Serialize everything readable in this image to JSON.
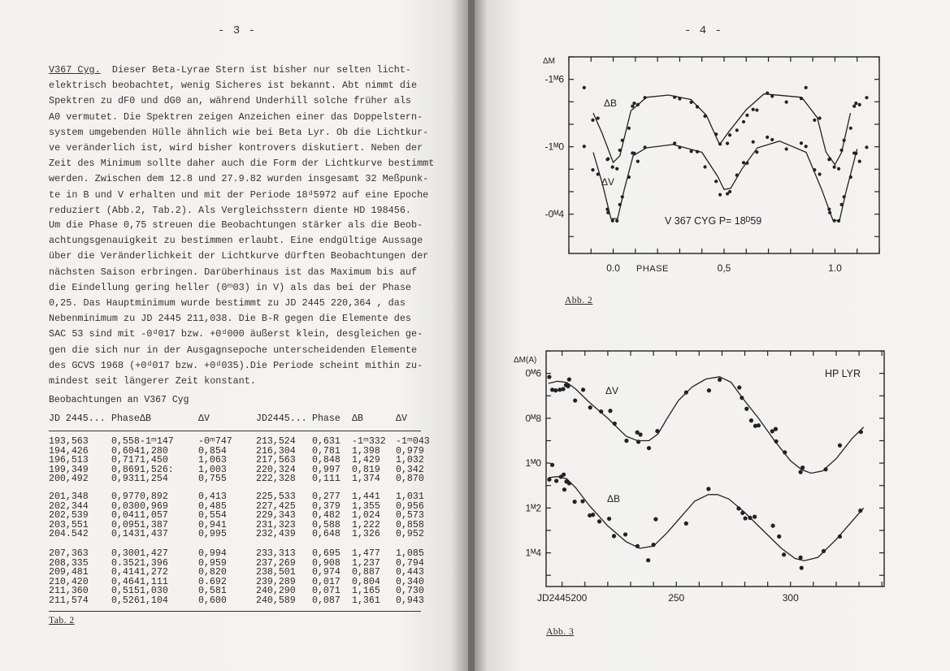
{
  "left_page": {
    "page_number": "- 3 -",
    "paragraph1_lead": "V367 Cyg.",
    "paragraph1": [
      "  Dieser Beta-Lyrae Stern ist bisher nur selten licht-",
      "elektrisch beobachtet, wenig Sicheres ist bekannt. Abt nimmt die",
      "Spektren zu dF0 und dG0 an, während Underhill solche früher als",
      "A0 vermutet. Die Spektren zeigen Anzeichen einer das Doppelstern-",
      "system umgebenden Hülle ähnlich wie bei Beta Lyr. Ob die Lichtkur-",
      "ve veränderlich ist, wird bisher kontrovers diskutiert. Neben der",
      "Zeit des Minimum sollte daher auch die Form der Lichtkurve bestimmt",
      "werden. Zwischen dem 12.8 und 27.9.82 wurden insgesamt 32 Meßpunk-",
      "te in B und V erhalten und mit der Periode 18ᵈ5972 auf eine Epoche",
      "reduziert (Abb.2, Tab.2). Als Vergleichsstern diente HD 198456."
    ],
    "paragraph2": [
      "Um die Phase 0,75 streuen die Beobachtungen stärker als die Beob-",
      "achtungsgenauigkeit zu bestimmen erlaubt. Eine endgültige Aussage",
      "über die Veränderlichkeit der Lichtkurve dürften Beobachtungen der",
      "nächsten Saison erbringen. Darüberhinaus ist das Maximum bis auf",
      "die Eindellung gering heller (0ᵐ03) in V) als das bei der Phase",
      "0,25. Das Hauptminimum wurde bestimmt zu JD 2445 220,364 , das",
      "Nebenminimum zu JD 2445 211,038. Die B-R gegen die Elemente des",
      "SAC 53 sind mit -0ᵈ017 bzw. +0ᵈ000 äußerst klein, desgleichen ge-",
      "gen die sich nur in der Ausgagnsepoche unterscheidenden Elemente",
      "des GCVS 1968 (+0ᵈ017 bzw. +0ᵈ035).Die Periode scheint mithin zu-",
      "mindest seit längerer Zeit konstant."
    ],
    "table_title": "Beobachtungen an V367 Cyg",
    "table_headers": [
      "JD 2445...",
      "Phase",
      "ΔB",
      "ΔV",
      "JD2445...",
      "Phase",
      "ΔB",
      "ΔV"
    ],
    "table_groups": [
      [
        [
          "193,563",
          "0,558",
          "-1ᵐ147",
          "-0ᵐ747",
          "213,524",
          "0,631",
          "-1ᵐ332",
          "-1ᵐ043"
        ],
        [
          "194,426",
          "0,604",
          "1,280",
          "0,854",
          "216,304",
          "0,781",
          "1,398",
          "0,979"
        ],
        [
          "196,513",
          "0,717",
          "1,450",
          "1,063",
          "217,563",
          "0,848",
          "1,429",
          "1,032"
        ],
        [
          "199,349",
          "0,869",
          "1,526:",
          "1,003",
          "220,324",
          "0,997",
          "0,819",
          "0,342"
        ],
        [
          "200,492",
          "0,931",
          "1,254",
          "0,755",
          "222,328",
          "0,111",
          "1,374",
          "0,870"
        ]
      ],
      [
        [
          "201,348",
          "0,977",
          "0,892",
          "0,413",
          "225,533",
          "0,277",
          "1,441",
          "1,031"
        ],
        [
          "202,344",
          "0,030",
          "0,969",
          "0,485",
          "227,425",
          "0,379",
          "1,355",
          "0,956"
        ],
        [
          "202,539",
          "0,041",
          "1,057",
          "0,554",
          "229,343",
          "0,482",
          "1,024",
          "0,573"
        ],
        [
          "203,551",
          "0,095",
          "1,387",
          "0,941",
          "231,323",
          "0,588",
          "1,222",
          "0,858"
        ],
        [
          "204.542",
          "0,143",
          "1,437",
          "0,995",
          "232,439",
          "0,648",
          "1,326",
          "0,952"
        ]
      ],
      [
        [
          "207,363",
          "0,300",
          "1,427",
          "0,994",
          "233,313",
          "0,695",
          "1,477",
          "1,085"
        ],
        [
          "208,335",
          "0.352",
          "1,396",
          "0,959",
          "237,269",
          "0,908",
          "1,237",
          "0,794"
        ],
        [
          "209,481",
          "0,414",
          "1,272",
          "0,820",
          "238,501",
          "0,974",
          "0,887",
          "0,443"
        ],
        [
          "210,420",
          "0,464",
          "1,111",
          "0.692",
          "239,289",
          "0,017",
          "0,804",
          "0,340"
        ],
        [
          "211,360",
          "0,515",
          "1,030",
          "0,581",
          "240,290",
          "0,071",
          "1,165",
          "0,730"
        ],
        [
          "211,574",
          "0,526",
          "1,104",
          "0,600",
          "240,589",
          "0,087",
          "1,361",
          "0,943"
        ]
      ]
    ],
    "table_caption": "Tab. 2"
  },
  "right_page": {
    "page_number": "- 4 -",
    "fig2_caption": "Abb. 2",
    "fig3_caption": "Abb. 3"
  },
  "chart_data": [
    {
      "type": "scatter",
      "title": "V 367 CYG  P= 18ᴰ59",
      "ylabel": "ΔM",
      "xlabel": "PHASE",
      "xlim": [
        -0.2,
        1.2
      ],
      "ylim": [
        -1.8,
        -0.05
      ],
      "y_inverted": true,
      "x_ticks": [
        {
          "v": 0.0,
          "label": "0.0"
        },
        {
          "v": 0.5,
          "label": "0,5"
        },
        {
          "v": 1.0,
          "label": "1.0"
        }
      ],
      "y_ticks": [
        {
          "v": -1.6,
          "label": "-1ᴹ6"
        },
        {
          "v": -1.0,
          "label": "-1ᴹ0"
        },
        {
          "v": -0.4,
          "label": "-0ᴹ4"
        }
      ],
      "grid": false,
      "series": [
        {
          "name": "ΔB",
          "phase": [
            0.558,
            0.604,
            0.717,
            0.869,
            0.931,
            0.977,
            0.03,
            0.041,
            0.095,
            0.143,
            0.3,
            0.352,
            0.414,
            0.464,
            0.515,
            0.526,
            0.631,
            0.781,
            0.848,
            0.997,
            0.111,
            0.277,
            0.379,
            0.482,
            0.588,
            0.648,
            0.695,
            0.908,
            0.974,
            0.017,
            0.071,
            0.087
          ],
          "values": [
            -1.147,
            -1.28,
            -1.45,
            -1.526,
            -1.254,
            -0.892,
            -0.969,
            -1.057,
            -1.387,
            -1.437,
            -1.427,
            -1.396,
            -1.272,
            -1.111,
            -1.03,
            -1.104,
            -1.332,
            -1.398,
            -1.429,
            -0.819,
            -1.374,
            -1.441,
            -1.355,
            -1.024,
            -1.222,
            -1.326,
            -1.477,
            -1.237,
            -0.887,
            -0.804,
            -1.165,
            -1.361
          ],
          "curve": [
            [
              -0.09,
              -1.3
            ],
            [
              -0.05,
              -1.12
            ],
            [
              0.0,
              -0.86
            ],
            [
              0.03,
              -0.92
            ],
            [
              0.08,
              -1.32
            ],
            [
              0.15,
              -1.44
            ],
            [
              0.25,
              -1.46
            ],
            [
              0.35,
              -1.42
            ],
            [
              0.42,
              -1.28
            ],
            [
              0.48,
              -1.02
            ],
            [
              0.52,
              -1.13
            ],
            [
              0.6,
              -1.33
            ],
            [
              0.68,
              -1.47
            ],
            [
              0.85,
              -1.44
            ],
            [
              0.92,
              -1.26
            ],
            [
              0.96,
              -0.95
            ],
            [
              1.0,
              -0.84
            ],
            [
              1.03,
              -0.95
            ],
            [
              1.07,
              -1.3
            ]
          ]
        },
        {
          "name": "ΔV",
          "phase": [
            0.558,
            0.604,
            0.717,
            0.869,
            0.931,
            0.977,
            0.03,
            0.041,
            0.095,
            0.143,
            0.3,
            0.352,
            0.414,
            0.464,
            0.515,
            0.526,
            0.631,
            0.781,
            0.848,
            0.997,
            0.111,
            0.277,
            0.379,
            0.482,
            0.588,
            0.648,
            0.695,
            0.908,
            0.974,
            0.017,
            0.071,
            0.087
          ],
          "values": [
            -0.747,
            -0.854,
            -1.063,
            -1.003,
            -0.755,
            -0.413,
            -0.485,
            -0.554,
            -0.941,
            -0.995,
            -0.994,
            -0.959,
            -0.82,
            -0.692,
            -0.581,
            -0.6,
            -1.043,
            -0.979,
            -1.032,
            -0.342,
            -0.87,
            -1.031,
            -0.956,
            -0.573,
            -0.858,
            -0.952,
            -1.085,
            -0.794,
            -0.443,
            -0.34,
            -0.73,
            -0.943
          ],
          "curve": [
            [
              -0.09,
              -0.95
            ],
            [
              -0.05,
              -0.68
            ],
            [
              -0.01,
              -0.36
            ],
            [
              0.02,
              -0.36
            ],
            [
              0.05,
              -0.62
            ],
            [
              0.09,
              -0.92
            ],
            [
              0.15,
              -0.99
            ],
            [
              0.27,
              -1.02
            ],
            [
              0.4,
              -0.95
            ],
            [
              0.47,
              -0.74
            ],
            [
              0.5,
              -0.62
            ],
            [
              0.53,
              -0.63
            ],
            [
              0.58,
              -0.8
            ],
            [
              0.65,
              -0.99
            ],
            [
              0.75,
              -1.05
            ],
            [
              0.87,
              -0.95
            ],
            [
              0.94,
              -0.62
            ],
            [
              0.99,
              -0.35
            ],
            [
              1.02,
              -0.34
            ],
            [
              1.05,
              -0.6
            ],
            [
              1.1,
              -0.98
            ]
          ]
        }
      ]
    },
    {
      "type": "scatter",
      "title": "HP LYR",
      "ylabel": "ΔM(A)",
      "xlabel": "",
      "xlim": [
        193,
        341
      ],
      "ylim": [
        0.5,
        1.55
      ],
      "y_inverted": true,
      "x_ticks": [
        {
          "v": 200,
          "label": "JD2445200"
        },
        {
          "v": 250,
          "label": "250"
        },
        {
          "v": 300,
          "label": "300"
        }
      ],
      "y_ticks": [
        {
          "v": 0.6,
          "label": "0ᴹ6"
        },
        {
          "v": 0.8,
          "label": "0ᴹ8"
        },
        {
          "v": 1.0,
          "label": "1ᴹ0"
        },
        {
          "v": 1.2,
          "label": "1ᴹ2"
        },
        {
          "v": 1.4,
          "label": "1ᴹ4"
        }
      ],
      "grid": false,
      "series": [
        {
          "name": "ΔV",
          "x": [
            194.4,
            195.7,
            197.2,
            199.0,
            200.5,
            201.7,
            202.6,
            203.1,
            205.7,
            209.2,
            212.3,
            217.1,
            221.1,
            223.0,
            228.2,
            232.9,
            233.4,
            234.3,
            238.0,
            241.7,
            254.3,
            264.3,
            269.0,
            277.6,
            278.7,
            280.8,
            282.8,
            284.6,
            286.0,
            292.0,
            293.5,
            293.7,
            297.5,
            304.4,
            305.3,
            315.4,
            321.6,
            330.8
          ],
          "values": [
            0.616,
            0.673,
            0.676,
            0.673,
            0.67,
            0.652,
            0.657,
            0.627,
            0.721,
            0.673,
            0.752,
            0.77,
            0.767,
            0.824,
            0.9,
            0.863,
            0.905,
            0.873,
            0.933,
            0.857,
            0.685,
            0.676,
            0.628,
            0.663,
            0.709,
            0.758,
            0.81,
            0.834,
            0.832,
            0.858,
            0.848,
            0.903,
            0.952,
            1.04,
            1.02,
            1.028,
            0.921,
            0.861
          ],
          "curve": [
            [
              194,
              0.645
            ],
            [
              198,
              0.635
            ],
            [
              202,
              0.64
            ],
            [
              206,
              0.67
            ],
            [
              212,
              0.73
            ],
            [
              220,
              0.8
            ],
            [
              228,
              0.88
            ],
            [
              233,
              0.9
            ],
            [
              238,
              0.9
            ],
            [
              242,
              0.87
            ],
            [
              246,
              0.8
            ],
            [
              251,
              0.72
            ],
            [
              257,
              0.66
            ],
            [
              263,
              0.625
            ],
            [
              269,
              0.615
            ],
            [
              274,
              0.64
            ],
            [
              279,
              0.71
            ],
            [
              286,
              0.8
            ],
            [
              293,
              0.9
            ],
            [
              300,
              0.99
            ],
            [
              305,
              1.03
            ],
            [
              309,
              1.045
            ],
            [
              314,
              1.035
            ],
            [
              320,
              0.98
            ],
            [
              327,
              0.89
            ],
            [
              332,
              0.84
            ]
          ]
        },
        {
          "name": "ΔB",
          "x": [
            195.7,
            194.4,
            197.5,
            199.5,
            200.7,
            201.9,
            203.1,
            201.0,
            205.5,
            209.0,
            212.1,
            213.5,
            216.3,
            220.6,
            222.7,
            227.7,
            233.0,
            237.7,
            240.0,
            241.0,
            254.3,
            264.1,
            277.3,
            279.0,
            280.2,
            282.3,
            284.3,
            292.3,
            295.0,
            297.1,
            304.4,
            304.8,
            314.5,
            321.6,
            330.6
          ],
          "values": [
            1.008,
            1.073,
            1.079,
            1.061,
            1.051,
            1.082,
            1.09,
            1.118,
            1.172,
            1.17,
            1.233,
            1.23,
            1.26,
            1.248,
            1.325,
            1.318,
            1.37,
            1.433,
            1.364,
            1.25,
            1.269,
            1.115,
            1.202,
            1.222,
            1.246,
            1.244,
            1.239,
            1.279,
            1.327,
            1.408,
            1.421,
            1.467,
            1.392,
            1.327,
            1.212
          ],
          "curve": [
            [
              194,
              1.065
            ],
            [
              198,
              1.06
            ],
            [
              202,
              1.07
            ],
            [
              206,
              1.11
            ],
            [
              212,
              1.19
            ],
            [
              220,
              1.28
            ],
            [
              228,
              1.35
            ],
            [
              234,
              1.38
            ],
            [
              240,
              1.37
            ],
            [
              246,
              1.31
            ],
            [
              252,
              1.24
            ],
            [
              258,
              1.17
            ],
            [
              264,
              1.14
            ],
            [
              268,
              1.14
            ],
            [
              273,
              1.16
            ],
            [
              280,
              1.22
            ],
            [
              288,
              1.3
            ],
            [
              296,
              1.38
            ],
            [
              302,
              1.425
            ],
            [
              306,
              1.435
            ],
            [
              312,
              1.42
            ],
            [
              320,
              1.34
            ],
            [
              326,
              1.27
            ],
            [
              332,
              1.2
            ]
          ]
        }
      ]
    }
  ]
}
